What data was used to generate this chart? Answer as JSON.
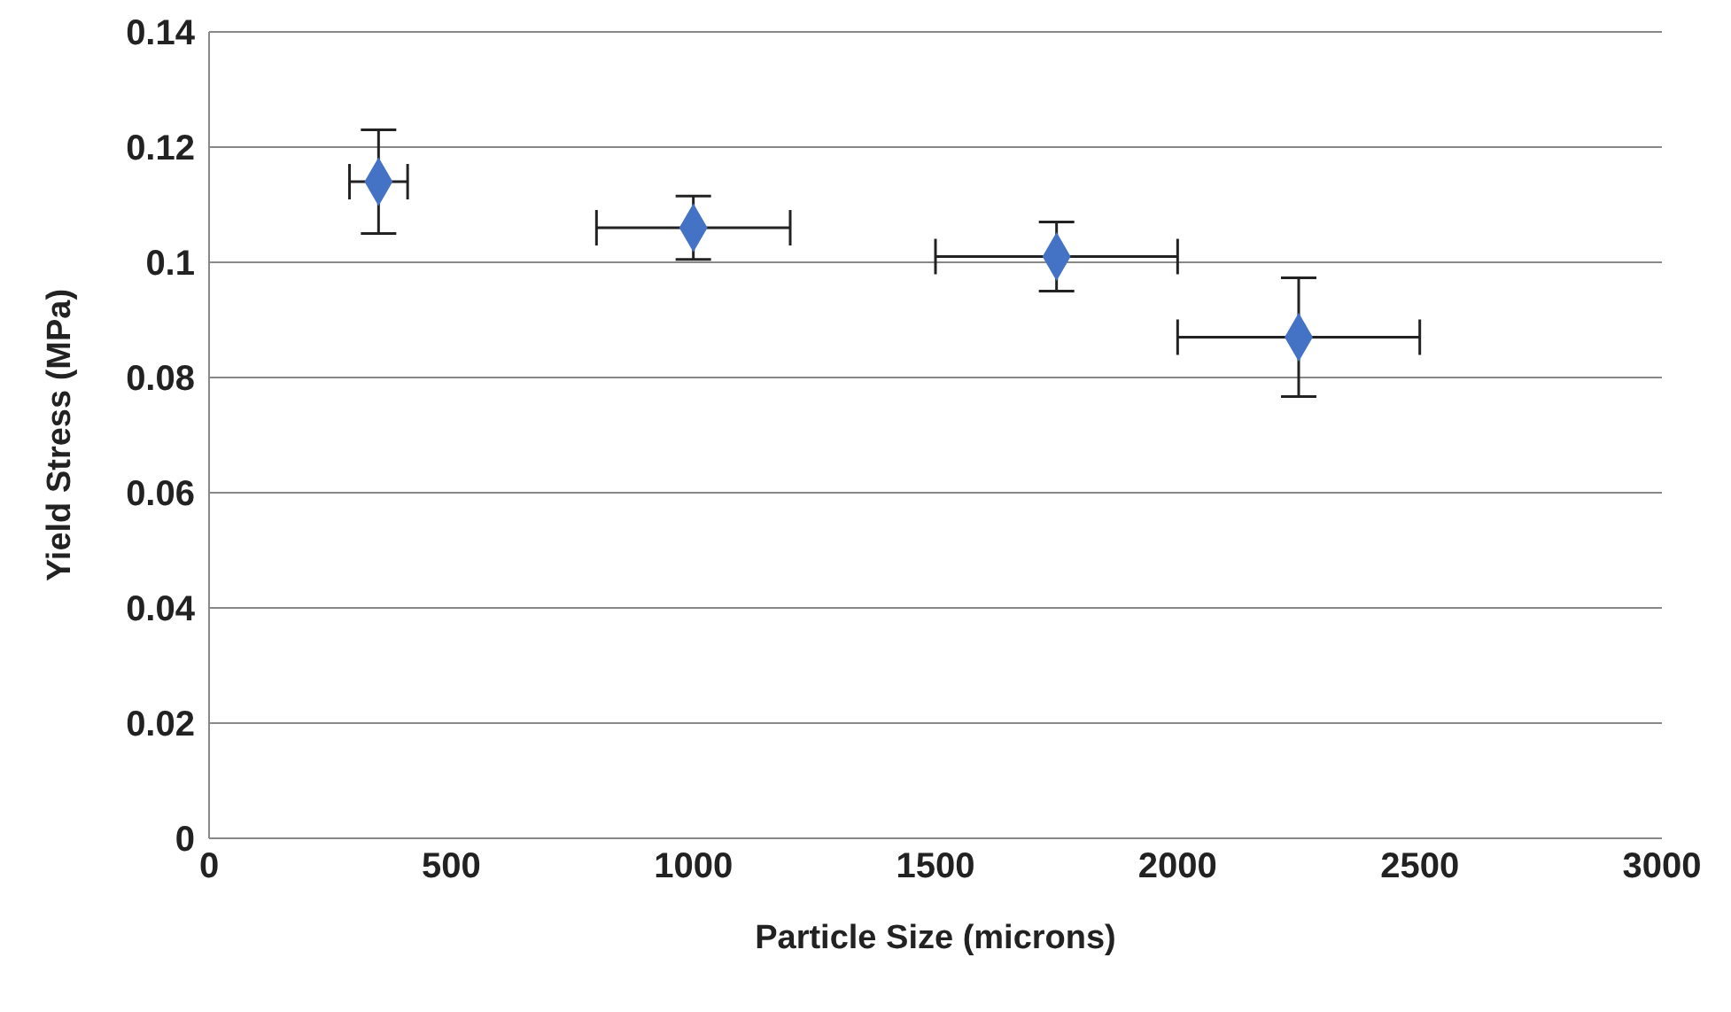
{
  "chart_data": {
    "type": "scatter",
    "xlabel": "Particle Size (microns)",
    "ylabel": "Yield Stress (MPa)",
    "x": [
      350,
      1000,
      1750,
      2250
    ],
    "series": [
      {
        "color": "#4472c4",
        "values": [
          0.114,
          0.106,
          0.101,
          0.087
        ],
        "errors": [
          0.009,
          0.0055,
          0.006,
          0.0103
        ],
        "xerrors": [
          60,
          200,
          250,
          250
        ]
      }
    ],
    "xlim": [
      0,
      3000
    ],
    "xticks": [
      0,
      500,
      1000,
      1500,
      2000,
      2500,
      3000
    ],
    "ylim": [
      0,
      0.14
    ],
    "yticks": [
      0,
      0.02,
      0.04,
      0.06,
      0.08,
      0.1,
      0.12,
      0.14
    ],
    "grid": "y",
    "marker": "diamond"
  }
}
